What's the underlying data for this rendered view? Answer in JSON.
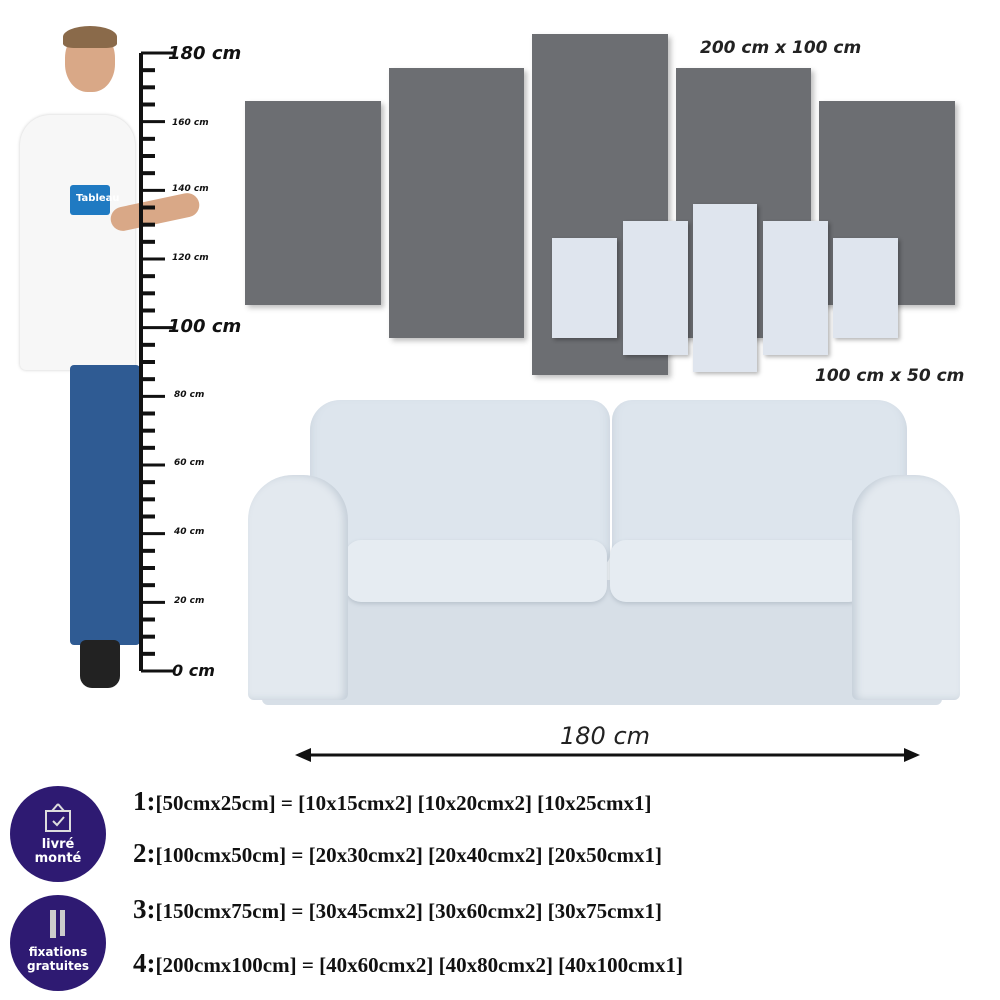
{
  "ruler": {
    "top_label": "180 cm",
    "labels": [
      "160 cm",
      "140 cm",
      "120 cm",
      "100 cm",
      "80 cm",
      "60 cm",
      "40 cm",
      "20 cm",
      "0 cm"
    ]
  },
  "person": {
    "shirt_logo": "Tableau"
  },
  "panels": {
    "large_size": "200 cm x 100 cm",
    "small_size": "100 cm x 50 cm"
  },
  "sofa": {
    "width_label": "180 cm"
  },
  "sizes": [
    {
      "num": "1:",
      "text": "[50cmx25cm] = [10x15cmx2] [10x20cmx2] [10x25cmx1]"
    },
    {
      "num": "2:",
      "text": "[100cmx50cm] = [20x30cmx2] [20x40cmx2] [20x50cmx1]"
    },
    {
      "num": "3:",
      "text": "[150cmx75cm] = [30x45cmx2] [30x60cmx2] [30x75cmx1]"
    },
    {
      "num": "4:",
      "text": "[200cmx100cm] = [40x60cmx2] [40x80cmx2] [40x100cmx1]"
    }
  ],
  "badges": [
    {
      "line1": "livré",
      "line2": "monté",
      "icon": "frame-check-icon"
    },
    {
      "line1": "fixations",
      "line2": "gratuites",
      "icon": "screw-icon"
    }
  ],
  "colors": {
    "panel": "#6c6e72",
    "small_panel": "#dfe5ee",
    "badge": "#2e1a72",
    "sofa": "#dfe7ee"
  }
}
